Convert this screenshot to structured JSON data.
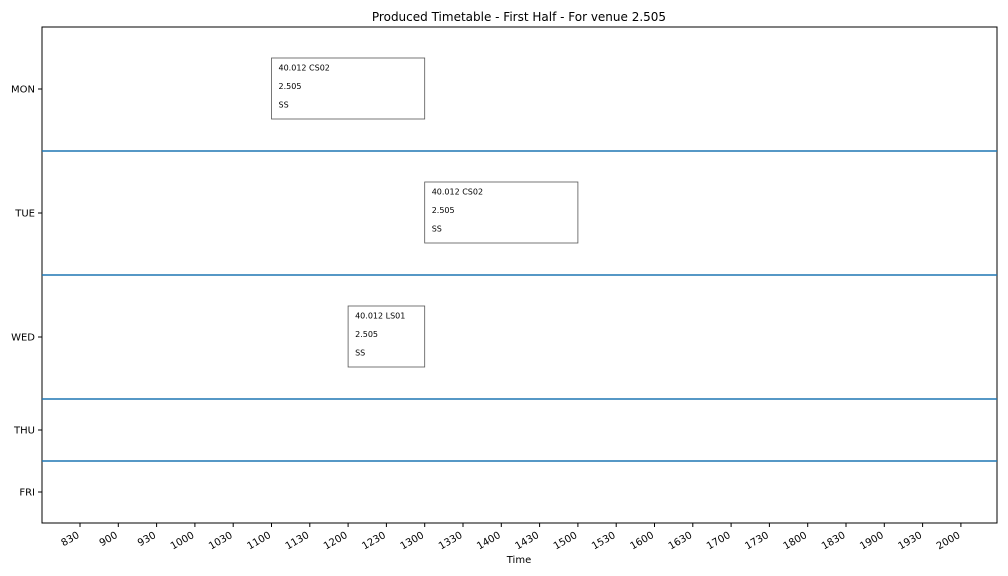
{
  "chart_data": {
    "type": "table",
    "title": "Produced Timetable - First Half - For venue 2.505",
    "xlabel": "Time",
    "ylabel": "",
    "x_ticks": [
      "830",
      "900",
      "930",
      "1000",
      "1030",
      "1100",
      "1130",
      "1200",
      "1230",
      "1300",
      "1330",
      "1400",
      "1430",
      "1500",
      "1530",
      "1600",
      "1630",
      "1700",
      "1730",
      "1800",
      "1830",
      "1900",
      "1930",
      "2000"
    ],
    "days": [
      "MON",
      "TUE",
      "WED",
      "THU",
      "FRI"
    ],
    "sessions": [
      {
        "day": "MON",
        "start": "1100",
        "end": "1300",
        "lines": [
          "40.012 CS02",
          "2.505",
          "SS"
        ]
      },
      {
        "day": "TUE",
        "start": "1300",
        "end": "1500",
        "lines": [
          "40.012 CS02",
          "2.505",
          "SS"
        ]
      },
      {
        "day": "WED",
        "start": "1200",
        "end": "1300",
        "lines": [
          "40.012 LS01",
          "2.505",
          "SS"
        ]
      }
    ],
    "separator_color": "#1f77b4",
    "grid": false
  }
}
